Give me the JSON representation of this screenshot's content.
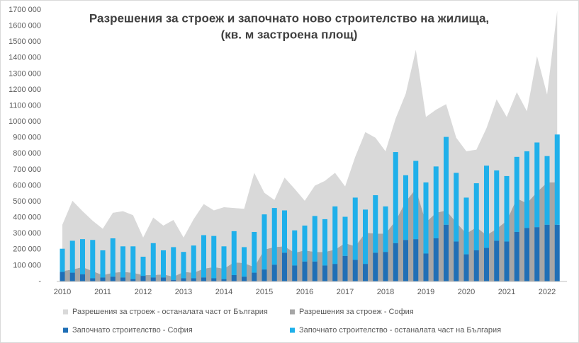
{
  "chart_data": {
    "type": "combo",
    "title": [
      "Разрешения за строеж и започнато  ново строителство на жилища,",
      "(кв. м застроена  площ)"
    ],
    "categories": [
      "2010",
      null,
      null,
      null,
      "2011",
      null,
      null,
      null,
      "2012",
      null,
      null,
      null,
      "2013",
      null,
      null,
      null,
      "2014",
      null,
      null,
      null,
      "2015",
      null,
      null,
      null,
      "2016",
      null,
      null,
      null,
      "2017",
      null,
      null,
      null,
      "2018",
      null,
      null,
      null,
      "2019",
      null,
      null,
      null,
      "2020",
      null,
      null,
      null,
      "2021",
      null,
      null,
      null,
      "2022",
      null
    ],
    "ylim": [
      0,
      1700000
    ],
    "yticks": [
      {
        "value": 0,
        "label": "-"
      },
      {
        "value": 100000,
        "label": "100 000"
      },
      {
        "value": 200000,
        "label": "200 000"
      },
      {
        "value": 300000,
        "label": "300 000"
      },
      {
        "value": 400000,
        "label": "400 000"
      },
      {
        "value": 500000,
        "label": "500 000"
      },
      {
        "value": 600000,
        "label": "600 000"
      },
      {
        "value": 700000,
        "label": "700 000"
      },
      {
        "value": 800000,
        "label": "800 000"
      },
      {
        "value": 900000,
        "label": "900 000"
      },
      {
        "value": 1000000,
        "label": "1000 000"
      },
      {
        "value": 1100000,
        "label": "1100 000"
      },
      {
        "value": 1200000,
        "label": "1200 000"
      },
      {
        "value": 1300000,
        "label": "1300 000"
      },
      {
        "value": 1400000,
        "label": "1400 000"
      },
      {
        "value": 1500000,
        "label": "1500 000"
      },
      {
        "value": 1600000,
        "label": "1600 000"
      },
      {
        "value": 1700000,
        "label": "1700 000"
      }
    ],
    "series": [
      {
        "name": "Разрешения  за строеж - останалата част от България",
        "kind": "area",
        "color": "#d9d9d9",
        "values": [
          290000,
          430000,
          350000,
          315000,
          290000,
          375000,
          380000,
          360000,
          235000,
          360000,
          305000,
          355000,
          215000,
          335000,
          405000,
          355000,
          385000,
          340000,
          340000,
          590000,
          355000,
          295000,
          430000,
          400000,
          310000,
          415000,
          445000,
          480000,
          355000,
          560000,
          630000,
          600000,
          515000,
          640000,
          675000,
          870000,
          660000,
          645000,
          665000,
          530000,
          515000,
          485000,
          670000,
          810000,
          650000,
          665000,
          575000,
          850000,
          550000,
          1075000
        ]
      },
      {
        "name": "Разрешения  за строеж - София",
        "kind": "area",
        "color": "#a6a6a6",
        "values": [
          65000,
          75000,
          90000,
          65000,
          40000,
          55000,
          60000,
          55000,
          40000,
          40000,
          45000,
          30000,
          60000,
          55000,
          80000,
          90000,
          80000,
          120000,
          115000,
          90000,
          200000,
          215000,
          220000,
          180000,
          195000,
          185000,
          185000,
          200000,
          240000,
          220000,
          305000,
          300000,
          300000,
          380000,
          500000,
          580000,
          370000,
          430000,
          445000,
          370000,
          300000,
          340000,
          290000,
          330000,
          380000,
          520000,
          490000,
          560000,
          620000,
          620000
        ]
      },
      {
        "name": "Започнато строителство  - София",
        "kind": "bar",
        "color": "#1f6fb6",
        "values": [
          60000,
          55000,
          45000,
          20000,
          25000,
          30000,
          25000,
          15000,
          35000,
          25000,
          25000,
          10000,
          20000,
          20000,
          25000,
          20000,
          15000,
          40000,
          30000,
          55000,
          75000,
          105000,
          180000,
          100000,
          125000,
          125000,
          100000,
          110000,
          160000,
          135000,
          110000,
          180000,
          185000,
          240000,
          260000,
          265000,
          175000,
          270000,
          355000,
          250000,
          170000,
          195000,
          210000,
          255000,
          250000,
          310000,
          335000,
          340000,
          355000,
          355000
        ]
      },
      {
        "name": "Започнато строителство  - останалата част на България",
        "kind": "bar",
        "color": "#1fb0ea",
        "values": [
          145000,
          200000,
          220000,
          240000,
          170000,
          240000,
          195000,
          205000,
          120000,
          215000,
          170000,
          205000,
          165000,
          205000,
          265000,
          265000,
          205000,
          275000,
          185000,
          255000,
          345000,
          355000,
          265000,
          220000,
          225000,
          285000,
          290000,
          360000,
          245000,
          390000,
          340000,
          360000,
          285000,
          570000,
          405000,
          490000,
          445000,
          450000,
          550000,
          430000,
          355000,
          420000,
          515000,
          440000,
          410000,
          470000,
          480000,
          530000,
          430000,
          565000
        ]
      }
    ]
  }
}
